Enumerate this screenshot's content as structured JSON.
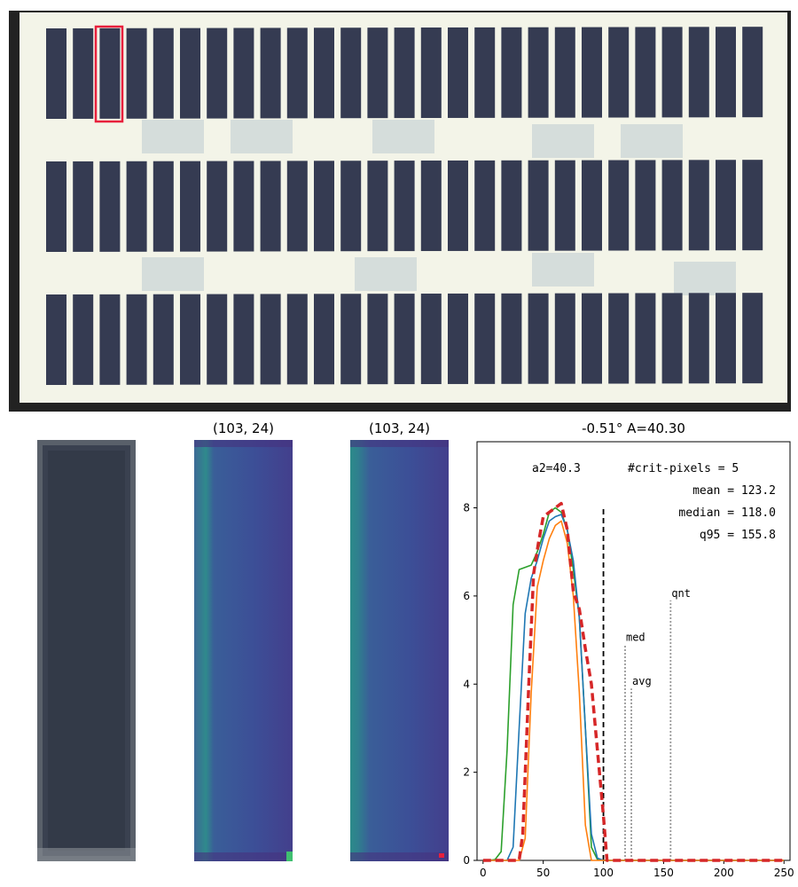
{
  "panels": {
    "thumb2_title": "(103, 24)",
    "thumb3_title": "(103, 24)",
    "chart_title": "-0.51° A=40.30"
  },
  "colors": {
    "plate_bg": "#f3f4e8",
    "cell": "#353b52",
    "frame": "#222222",
    "highlight": "#e8203c",
    "viridis_dark": "#3b4a8e",
    "viridis_teal": "#2c8a8a"
  },
  "chart_data": {
    "type": "line",
    "title": "-0.51° A=40.30",
    "xlim": [
      -5,
      255
    ],
    "ylim": [
      0,
      9.5
    ],
    "xticks": [
      0,
      50,
      100,
      150,
      200,
      250
    ],
    "yticks": [
      0,
      2,
      4,
      6,
      8
    ],
    "series": [
      {
        "color": "#2ca02c",
        "dashed": false,
        "x": [
          0,
          5,
          10,
          15,
          20,
          25,
          30,
          35,
          40,
          45,
          50,
          55,
          60,
          65,
          70,
          75,
          80,
          85,
          90,
          95,
          100,
          110,
          150,
          200,
          250
        ],
        "y": [
          0,
          0,
          0.02,
          0.2,
          2.5,
          5.8,
          6.6,
          6.65,
          6.7,
          7.0,
          7.4,
          7.9,
          8.0,
          7.9,
          7.5,
          6.6,
          5.5,
          3.0,
          0.3,
          0.02,
          0,
          0,
          0,
          0,
          0
        ]
      },
      {
        "color": "#1f77b4",
        "dashed": false,
        "x": [
          0,
          20,
          25,
          30,
          35,
          40,
          45,
          50,
          55,
          60,
          65,
          70,
          75,
          80,
          85,
          90,
          95,
          100,
          150,
          200,
          250
        ],
        "y": [
          0,
          0,
          0.3,
          3.0,
          5.6,
          6.4,
          6.8,
          7.3,
          7.7,
          7.8,
          7.85,
          7.5,
          6.8,
          5.5,
          3.0,
          0.6,
          0.05,
          0,
          0,
          0,
          0
        ]
      },
      {
        "color": "#ff7f0e",
        "dashed": false,
        "x": [
          0,
          30,
          35,
          40,
          45,
          50,
          55,
          60,
          65,
          70,
          75,
          80,
          85,
          90,
          100,
          150,
          200,
          250
        ],
        "y": [
          0,
          0,
          0.5,
          3.8,
          6.2,
          6.8,
          7.3,
          7.6,
          7.7,
          7.2,
          6.0,
          3.8,
          0.8,
          0,
          0,
          0,
          0,
          0
        ]
      },
      {
        "color": "#d62728",
        "dashed": true,
        "x": [
          0,
          30,
          33,
          38,
          42,
          46,
          50,
          55,
          60,
          65,
          70,
          75,
          80,
          85,
          90,
          95,
          100,
          103,
          110,
          150,
          200,
          250
        ],
        "y": [
          0,
          0,
          0.6,
          4.0,
          6.5,
          7.2,
          7.8,
          7.9,
          8.0,
          8.1,
          7.5,
          6.1,
          5.7,
          4.8,
          4.0,
          2.5,
          1.0,
          0,
          0,
          0,
          0,
          0
        ]
      }
    ],
    "vlines": [
      {
        "x": 100,
        "y_top": 8.0,
        "style": "dashed-black",
        "label": ""
      },
      {
        "x": 118,
        "y_top": 4.9,
        "style": "dotted-gray",
        "label": "med"
      },
      {
        "x": 123.2,
        "y_top": 3.9,
        "style": "dotted-gray",
        "label": "avg"
      },
      {
        "x": 155.8,
        "y_top": 5.9,
        "style": "dotted-gray",
        "label": "qnt"
      }
    ],
    "annotations": {
      "a2": "a2=40.3",
      "crit": "#crit-pixels = 5",
      "mean": "mean = 123.2",
      "median": "median = 118.0",
      "q95": "q95 = 155.8"
    }
  }
}
